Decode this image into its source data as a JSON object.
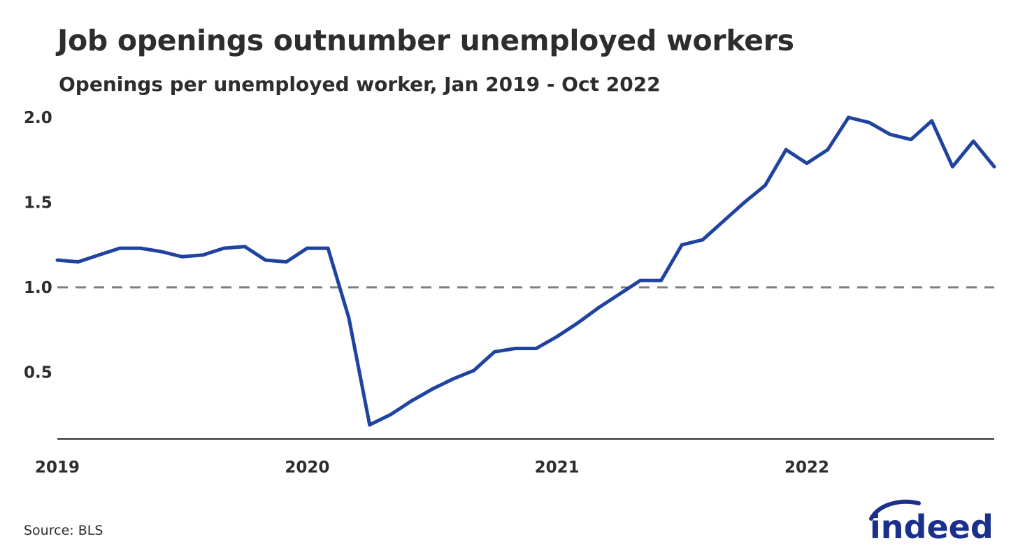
{
  "title": "Job openings outnumber unemployed workers",
  "subtitle": "Openings per unemployed worker, Jan 2019 - Oct 2022",
  "source": "Source: BLS",
  "logo_text": "indeed",
  "colors": {
    "line": "#2043a0",
    "reference": "#7f7f7f",
    "axis": "#2d2d2d",
    "logo": "#1b2f8c"
  },
  "chart_data": {
    "type": "line",
    "title": "Job openings outnumber unemployed workers",
    "subtitle": "Openings per unemployed worker, Jan 2019 - Oct 2022",
    "xlabel": "",
    "ylabel": "",
    "x_start": "2019-01",
    "x_end": "2022-10",
    "x": [
      "2019-01",
      "2019-02",
      "2019-03",
      "2019-04",
      "2019-05",
      "2019-06",
      "2019-07",
      "2019-08",
      "2019-09",
      "2019-10",
      "2019-11",
      "2019-12",
      "2020-01",
      "2020-02",
      "2020-03",
      "2020-04",
      "2020-05",
      "2020-06",
      "2020-07",
      "2020-08",
      "2020-09",
      "2020-10",
      "2020-11",
      "2020-12",
      "2021-01",
      "2021-02",
      "2021-03",
      "2021-04",
      "2021-05",
      "2021-06",
      "2021-07",
      "2021-08",
      "2021-09",
      "2021-10",
      "2021-11",
      "2021-12",
      "2022-01",
      "2022-02",
      "2022-03",
      "2022-04",
      "2022-05",
      "2022-06",
      "2022-07",
      "2022-08",
      "2022-09",
      "2022-10"
    ],
    "series": [
      {
        "values": [
          1.16,
          1.15,
          1.19,
          1.23,
          1.23,
          1.21,
          1.18,
          1.19,
          1.23,
          1.24,
          1.16,
          1.15,
          1.23,
          1.23,
          0.82,
          0.19,
          0.25,
          0.33,
          0.4,
          0.46,
          0.51,
          0.62,
          0.64,
          0.64,
          0.71,
          0.79,
          0.88,
          0.96,
          1.04,
          1.04,
          1.25,
          1.28,
          1.39,
          1.5,
          1.6,
          1.81,
          1.73,
          1.81,
          2.0,
          1.97,
          1.9,
          1.87,
          1.98,
          1.71,
          1.86,
          1.71
        ]
      }
    ],
    "ylim": [
      0.1,
      2.05
    ],
    "y_ticks": [
      "0.5",
      "1.0",
      "1.5",
      "2.0"
    ],
    "x_ticks": [
      "2019",
      "2020",
      "2021",
      "2022"
    ],
    "reference_line": 1.0,
    "grid": false,
    "legend": "none"
  }
}
